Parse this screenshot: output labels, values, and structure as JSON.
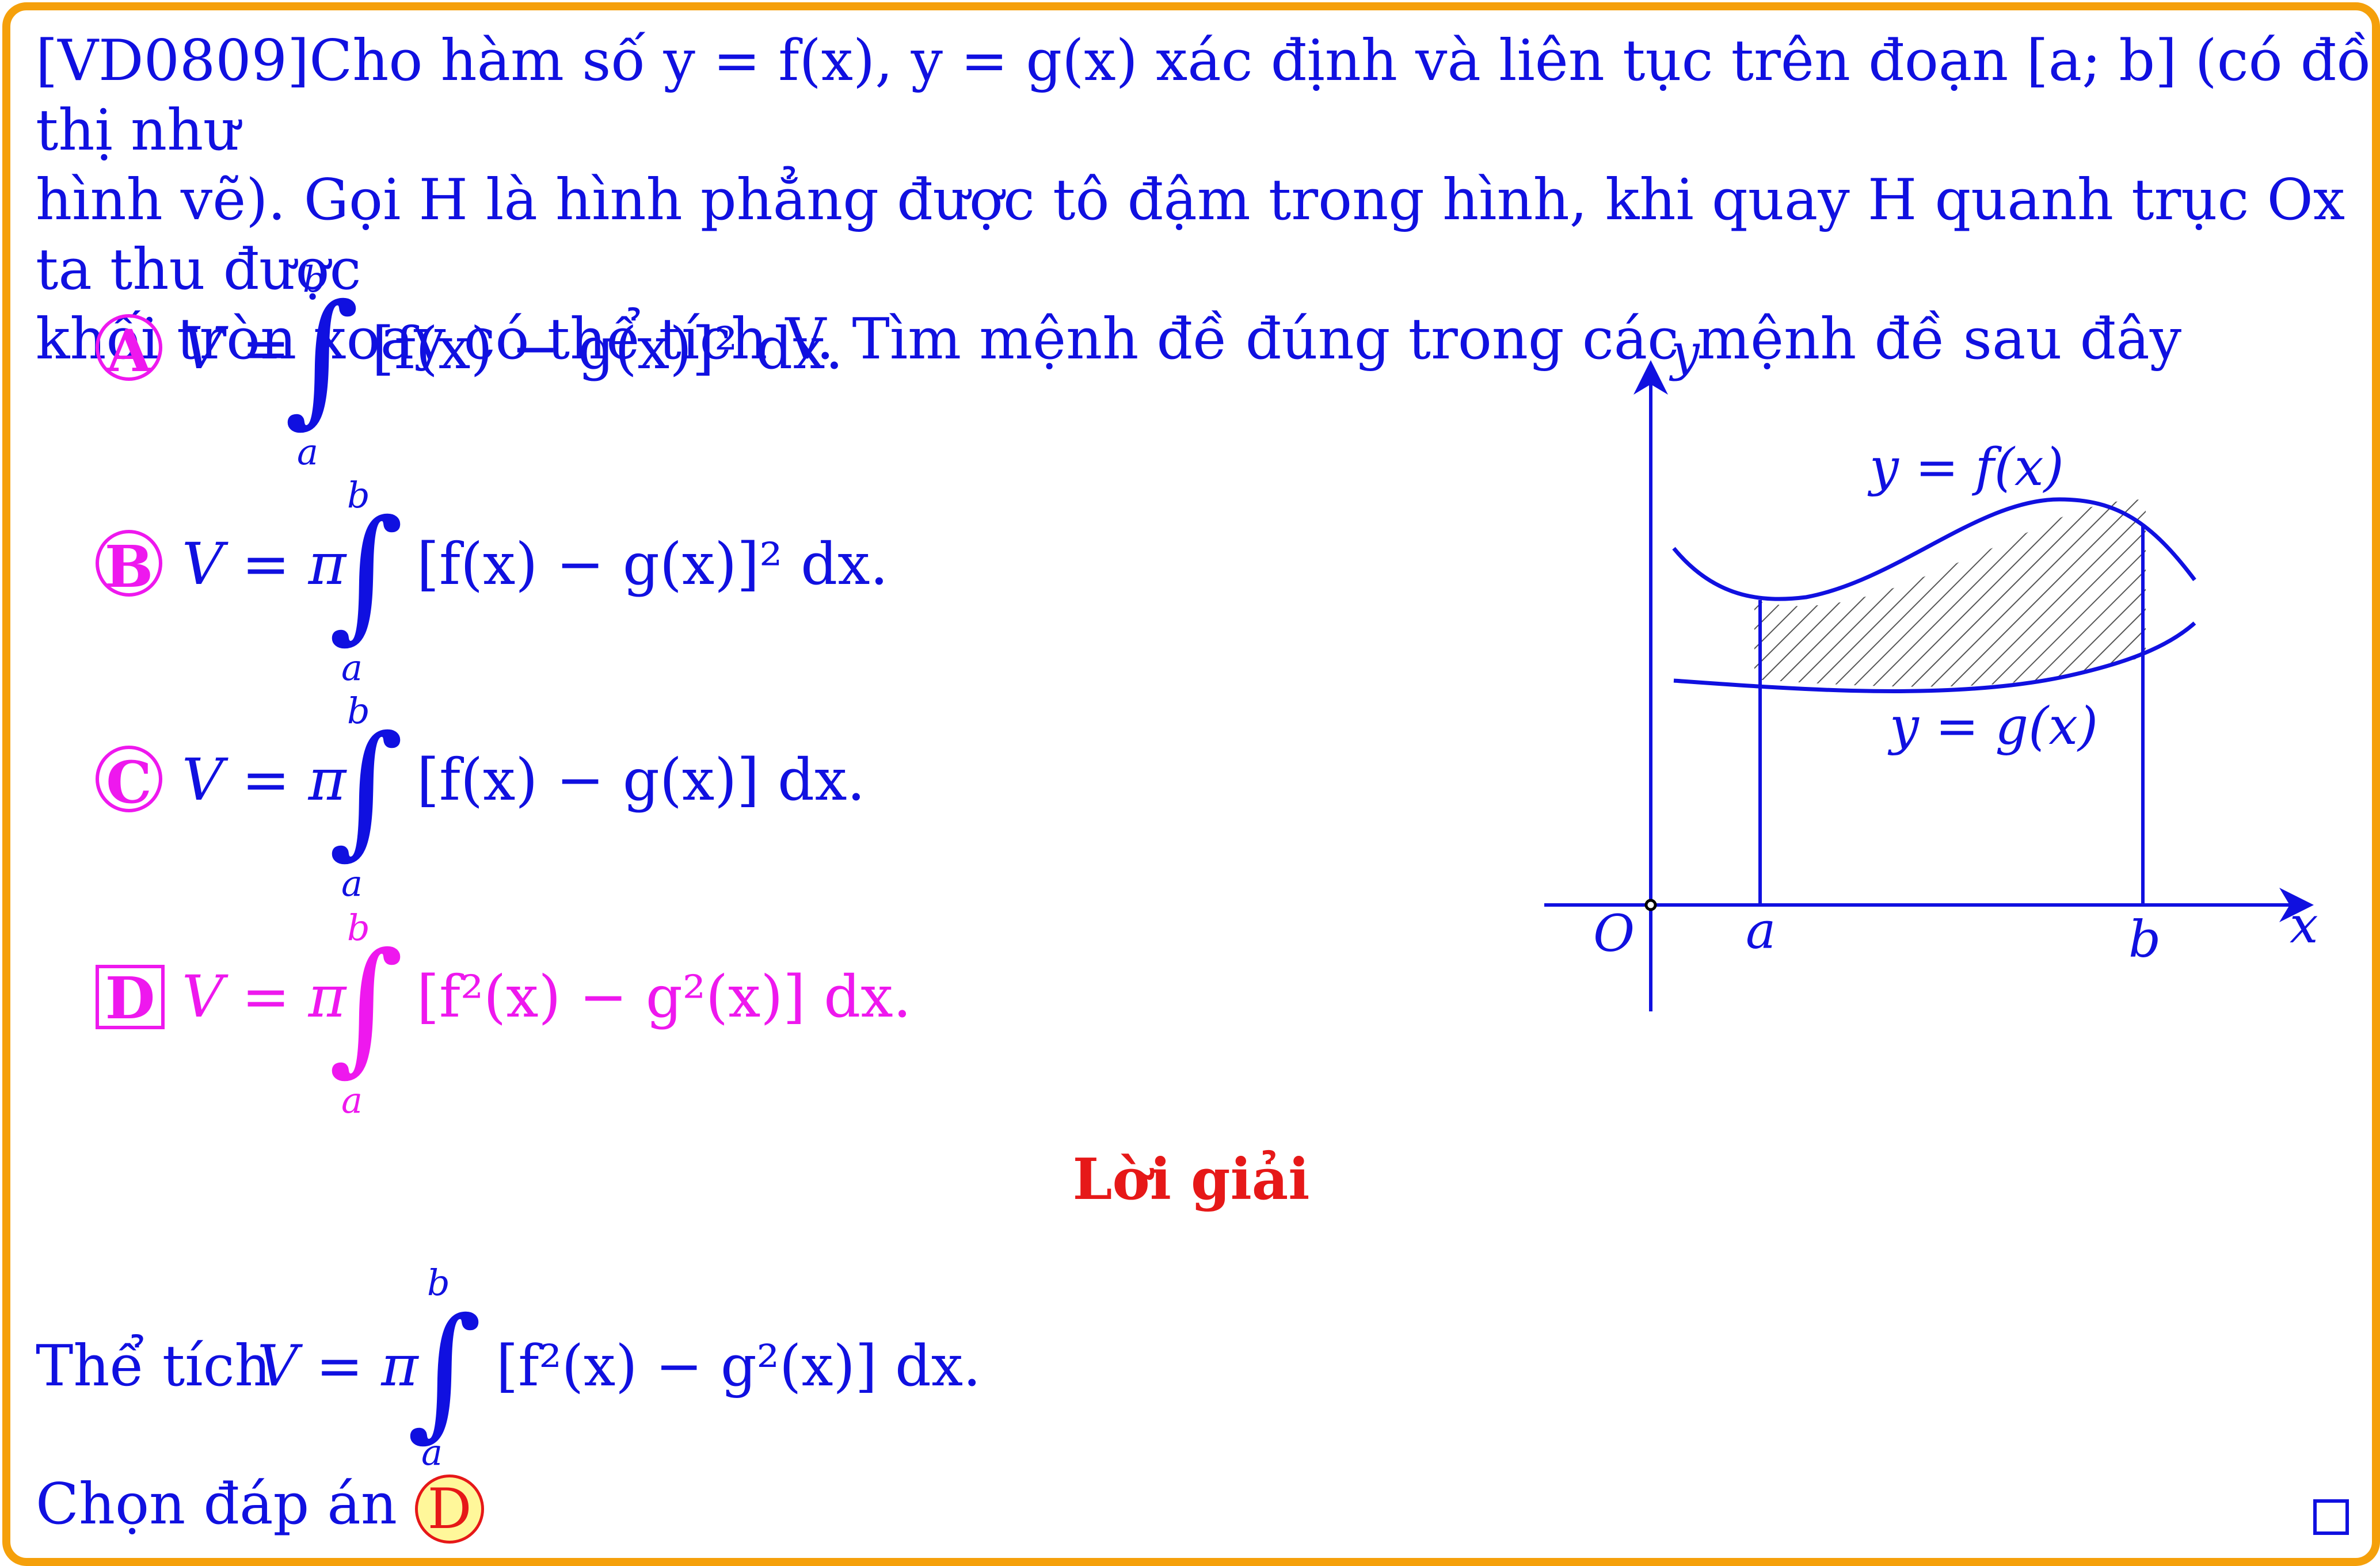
{
  "question": {
    "line1_code": "[VD0809]",
    "line1_text": "Cho hàm số y = f(x), y = g(x) xác định và liên tục trên đoạn [a; b] (có đồ thị như",
    "line2_text": "hình vẽ). Gọi H là hình phẳng được tô đậm trong hình, khi quay H quanh trục Ox ta thu được",
    "line3_text": "khối tròn xoay có thể tích V. Tìm mệnh đề đúng trong các mệnh đề sau đây"
  },
  "options": [
    {
      "label": "A",
      "lhs": "V =",
      "integrand": "[f(x) − g(x)]² dx.",
      "upper": "b",
      "lower": "a",
      "correct": false
    },
    {
      "label": "B",
      "lhs": "V = π",
      "integrand": "[f(x) − g(x)]² dx.",
      "upper": "b",
      "lower": "a",
      "correct": false
    },
    {
      "label": "C",
      "lhs": "V = π",
      "integrand": "[f(x) − g(x)] dx.",
      "upper": "b",
      "lower": "a",
      "correct": false
    },
    {
      "label": "D",
      "lhs": "V = π",
      "integrand": "[f²(x) − g²(x)] dx.",
      "upper": "b",
      "lower": "a",
      "correct": true
    }
  ],
  "figure": {
    "y_axis": "y",
    "x_axis": "x",
    "origin": "O",
    "a_label": "a",
    "b_label": "b",
    "f_label": "y = f(x)",
    "g_label": "y = g(x)"
  },
  "solution": {
    "title": "Lời giải",
    "prefix": "Thể tích",
    "lhs": "V = π",
    "integrand": "[f²(x) − g²(x)] dx.",
    "upper": "b",
    "lower": "a",
    "choose_text": "Chọn đáp án",
    "answer": "D"
  },
  "colors": {
    "border": "#f5a00b",
    "text": "#1010e0",
    "option_label": "#ee18ee",
    "solution_title": "#e61818",
    "answer_bg": "#fff79a"
  }
}
